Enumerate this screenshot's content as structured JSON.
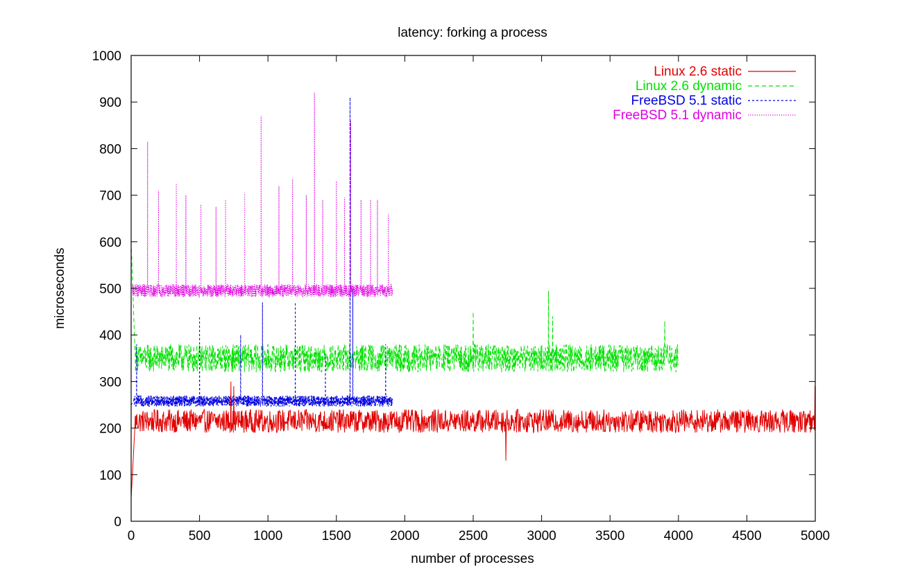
{
  "chart_data": {
    "type": "line",
    "title": "latency: forking a process",
    "xlabel": "number of processes",
    "ylabel": "microseconds",
    "xlim": [
      0,
      5000
    ],
    "ylim": [
      0,
      1000
    ],
    "xticks": [
      0,
      500,
      1000,
      1500,
      2000,
      2500,
      3000,
      3500,
      4000,
      4500,
      5000
    ],
    "yticks": [
      0,
      100,
      200,
      300,
      400,
      500,
      600,
      700,
      800,
      900,
      1000
    ],
    "grid": false,
    "legend_position": "top-right",
    "series": [
      {
        "name": "Linux 2.6 static",
        "color": "#e00000",
        "dash": "solid",
        "x_range": [
          0,
          5000
        ],
        "start_value": 50,
        "ramp_end_x": 30,
        "baseline": 215,
        "noise": 25,
        "spikes": [
          [
            730,
            300
          ],
          [
            750,
            290
          ],
          [
            2740,
            130
          ],
          [
            5000,
            290
          ]
        ]
      },
      {
        "name": "Linux 2.6 dynamic",
        "color": "#00e000",
        "dash": "dashed",
        "x_range": [
          0,
          4000
        ],
        "start_value": 600,
        "ramp_end_x": 30,
        "baseline": 350,
        "noise": 30,
        "spikes": [
          [
            2500,
            450
          ],
          [
            3050,
            495
          ],
          [
            3080,
            440
          ],
          [
            3900,
            430
          ]
        ]
      },
      {
        "name": "FreeBSD 5.1 static",
        "color": "#0000e0",
        "dash": "short-dashed",
        "x_range": [
          0,
          1910
        ],
        "start_value": 250,
        "ramp_end_x": 20,
        "baseline": 258,
        "noise": 12,
        "spikes": [
          [
            40,
            380
          ],
          [
            500,
            440
          ],
          [
            800,
            400
          ],
          [
            960,
            470
          ],
          [
            1200,
            470
          ],
          [
            1420,
            360
          ],
          [
            1600,
            910
          ],
          [
            1620,
            500
          ],
          [
            1860,
            380
          ]
        ]
      },
      {
        "name": "FreeBSD 5.1 dynamic",
        "color": "#e000e0",
        "dash": "dotted",
        "x_range": [
          0,
          1910
        ],
        "start_value": 490,
        "ramp_end_x": 10,
        "baseline": 495,
        "noise": 14,
        "spikes": [
          [
            120,
            815
          ],
          [
            200,
            710
          ],
          [
            330,
            725
          ],
          [
            400,
            700
          ],
          [
            510,
            680
          ],
          [
            620,
            675
          ],
          [
            690,
            690
          ],
          [
            830,
            705
          ],
          [
            950,
            870
          ],
          [
            1080,
            720
          ],
          [
            1180,
            735
          ],
          [
            1280,
            700
          ],
          [
            1340,
            920
          ],
          [
            1400,
            690
          ],
          [
            1500,
            730
          ],
          [
            1560,
            695
          ],
          [
            1605,
            860
          ],
          [
            1680,
            690
          ],
          [
            1750,
            690
          ],
          [
            1800,
            690
          ],
          [
            1880,
            660
          ]
        ]
      }
    ]
  }
}
